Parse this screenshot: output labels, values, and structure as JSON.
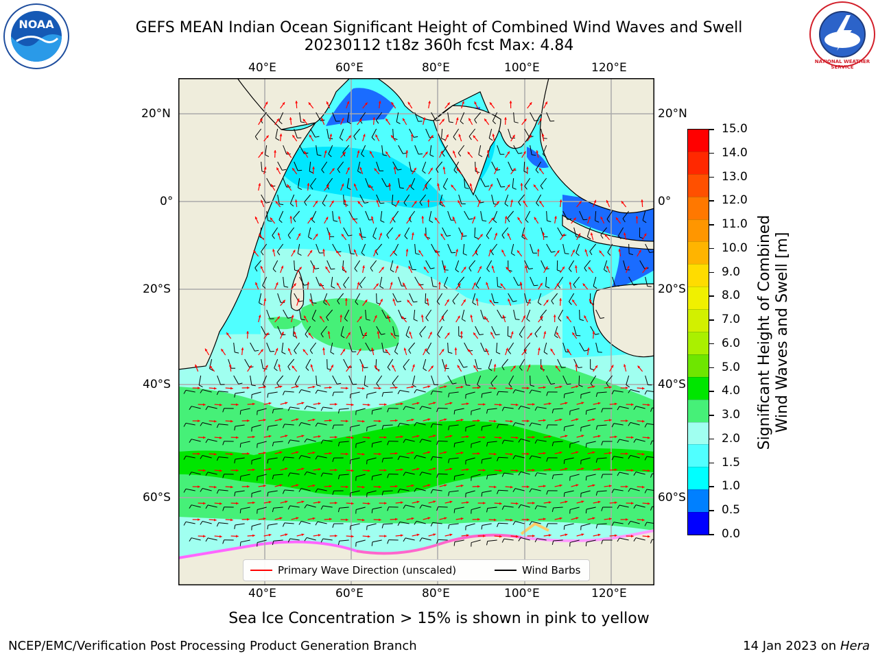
{
  "header": {
    "title_line1": "GEFS MEAN Indian Ocean Significant Height of Combined Wind Waves and Swell",
    "title_line2": "20230112 t18z 360h fcst   Max: 4.84"
  },
  "logos": {
    "left_text": "NOAA",
    "right_text": "NATIONAL WEATHER SERVICE"
  },
  "axes": {
    "lon_ticks_top": [
      "40°E",
      "60°E",
      "80°E",
      "100°E",
      "120°E"
    ],
    "lon_ticks_bottom": [
      "40°E",
      "60°E",
      "80°E",
      "100°E",
      "120°E"
    ],
    "lat_ticks_left": [
      "20°N",
      "0°",
      "20°S",
      "40°S",
      "60°S"
    ],
    "lat_ticks_right": [
      "20°N",
      "0°",
      "20°S",
      "40°S",
      "60°S"
    ]
  },
  "legend": {
    "wave_label": "Primary Wave Direction (unscaled)",
    "wind_label": "Wind Barbs"
  },
  "colorbar": {
    "label_line1": "Significant Height of Combined",
    "label_line2": "Wind Waves and Swell [m]",
    "ticks": [
      "15.0",
      "14.0",
      "13.0",
      "12.0",
      "11.0",
      "10.0",
      "9.0",
      "8.0",
      "7.0",
      "6.0",
      "5.0",
      "4.0",
      "3.0",
      "2.0",
      "1.5",
      "1.0",
      "0.5",
      "0.0"
    ],
    "colors": [
      "#ff0000",
      "#ff2800",
      "#ff5000",
      "#ff7800",
      "#ff9600",
      "#ffb400",
      "#ffdc00",
      "#f0f000",
      "#d2f000",
      "#aaf000",
      "#6ee600",
      "#00e600",
      "#46f078",
      "#a0fff0",
      "#50ffff",
      "#00ffff",
      "#0080ff",
      "#0000ff"
    ]
  },
  "notes": {
    "sea_ice": "Sea Ice Concentration > 15% is shown in pink to yellow"
  },
  "footer": {
    "left": "NCEP/EMC/Verification Post Processing Product Generation Branch",
    "right_prefix": "14 Jan 2023 on ",
    "right_host": "Hera"
  },
  "map_colors": {
    "land": "#efeddc",
    "band_1_5_2": "#50ffff",
    "band_2_3": "#a0fff0",
    "band_3_4": "#46f078",
    "band_4_5": "#00e600",
    "band_1_1_5": "#00e6ff",
    "band_0_5_1": "#1a6cff",
    "wave_arrow": "#ff0000",
    "wind_barb": "#000000"
  }
}
